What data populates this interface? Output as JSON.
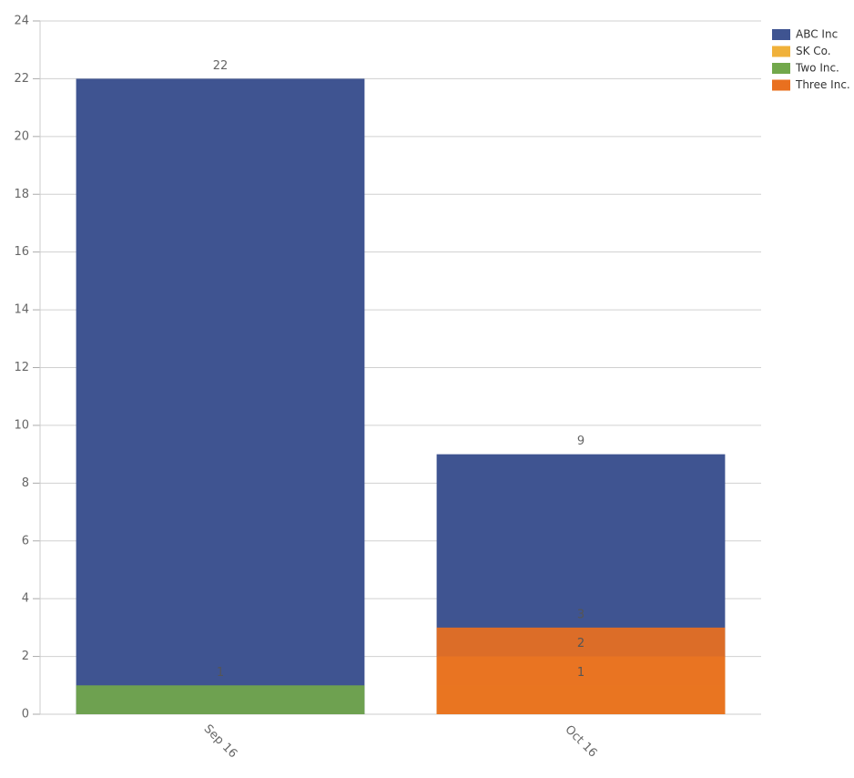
{
  "chart_data": {
    "type": "bar",
    "categories": [
      "Sep 16",
      "Oct 16"
    ],
    "series": [
      {
        "name": "ABC Inc",
        "color": "#3f5491",
        "values": [
          22,
          9
        ]
      },
      {
        "name": "Two Inc.",
        "color": "#72a84b",
        "values": [
          1,
          1
        ]
      },
      {
        "name": "SK Co.",
        "color": "#f0b13a",
        "values": [
          null,
          2
        ]
      },
      {
        "name": "Three Inc.",
        "color": "#e9701f",
        "values": [
          null,
          3
        ]
      }
    ],
    "legend_order": [
      "ABC Inc",
      "SK Co.",
      "Two Inc.",
      "Three Inc."
    ],
    "ylim": [
      0,
      24
    ],
    "yticks": [
      0,
      2,
      4,
      6,
      8,
      10,
      12,
      14,
      16,
      18,
      20,
      22,
      24
    ],
    "grid": true,
    "legend": "top-right"
  }
}
